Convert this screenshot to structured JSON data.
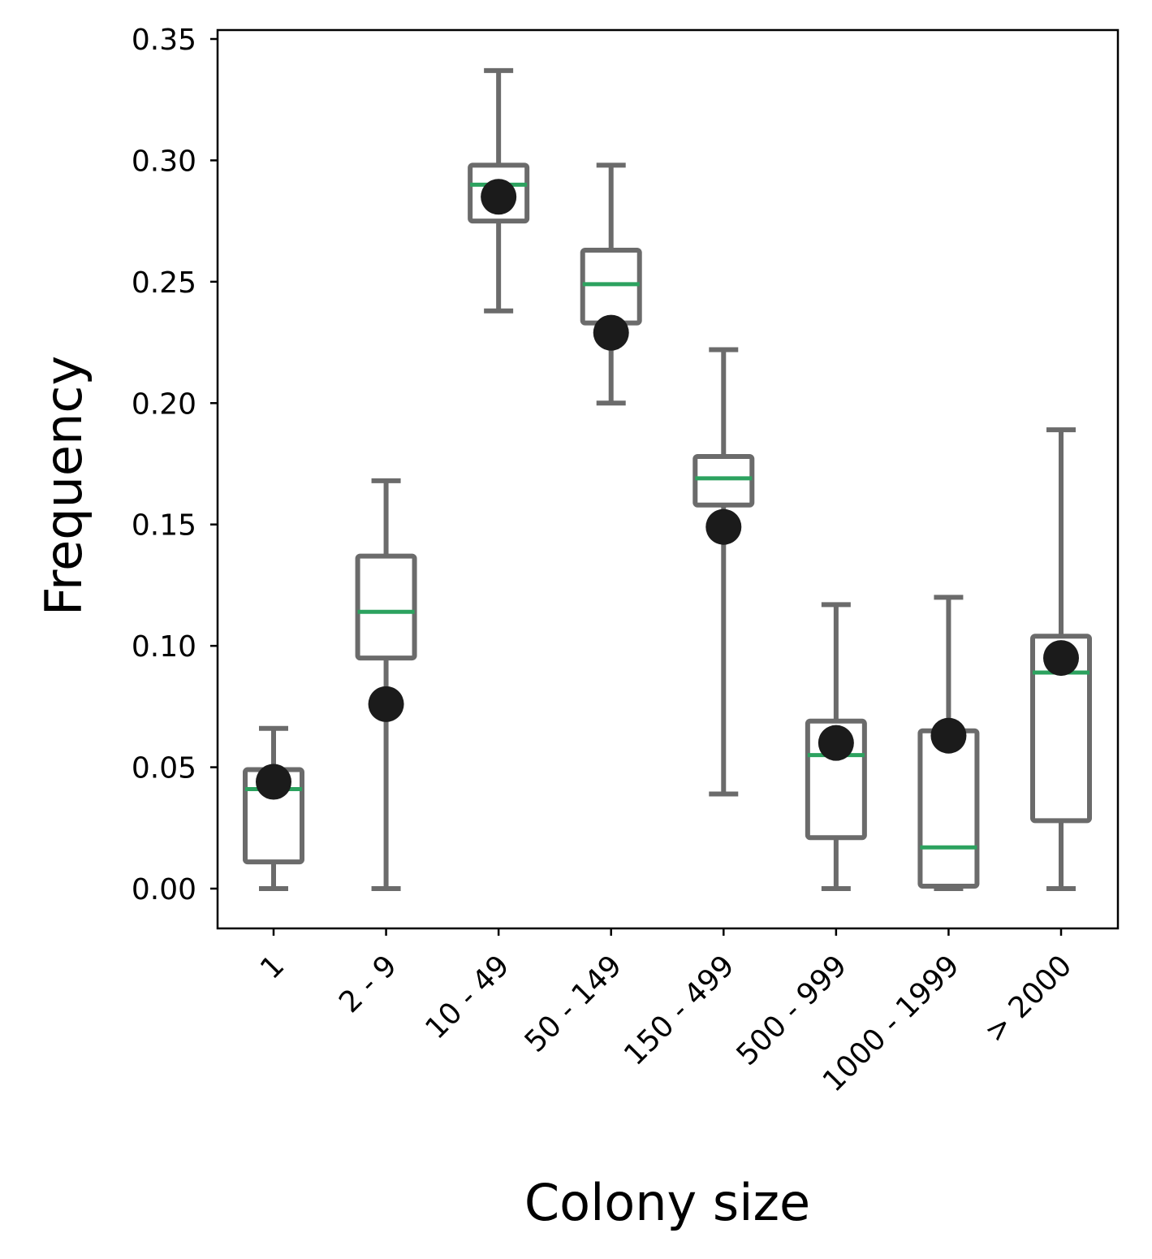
{
  "chart_data": {
    "type": "box",
    "xlabel": "Colony size",
    "ylabel": "Frequency",
    "ylim": [
      -0.017,
      0.355
    ],
    "yticks": [
      "0.00",
      "0.05",
      "0.10",
      "0.15",
      "0.20",
      "0.25",
      "0.30",
      "0.35"
    ],
    "ytick_values": [
      0,
      0.05,
      0.1,
      0.15,
      0.2,
      0.25,
      0.3,
      0.35
    ],
    "categories": [
      "1",
      "2 - 9",
      "10 - 49",
      "50 - 149",
      "150 - 499",
      "500 - 999",
      "1000 - 1999",
      "> 2000"
    ],
    "boxes": [
      {
        "whisker_low": 0.0,
        "q1": 0.011,
        "median": 0.041,
        "q3": 0.049,
        "whisker_high": 0.066
      },
      {
        "whisker_low": 0.0,
        "q1": 0.095,
        "median": 0.114,
        "q3": 0.137,
        "whisker_high": 0.168
      },
      {
        "whisker_low": 0.238,
        "q1": 0.275,
        "median": 0.29,
        "q3": 0.298,
        "whisker_high": 0.337
      },
      {
        "whisker_low": 0.2,
        "q1": 0.233,
        "median": 0.249,
        "q3": 0.263,
        "whisker_high": 0.298
      },
      {
        "whisker_low": 0.039,
        "q1": 0.158,
        "median": 0.169,
        "q3": 0.178,
        "whisker_high": 0.222
      },
      {
        "whisker_low": 0.0,
        "q1": 0.021,
        "median": 0.055,
        "q3": 0.069,
        "whisker_high": 0.117
      },
      {
        "whisker_low": 0.0,
        "q1": 0.001,
        "median": 0.017,
        "q3": 0.065,
        "whisker_high": 0.12
      },
      {
        "whisker_low": 0.0,
        "q1": 0.028,
        "median": 0.089,
        "q3": 0.104,
        "whisker_high": 0.189
      }
    ],
    "points": [
      0.044,
      0.076,
      0.285,
      0.229,
      0.149,
      0.06,
      0.063,
      0.095
    ],
    "colors": {
      "box": "#6b6b6b",
      "median": "#2ca25f",
      "point": "#1b1b1b",
      "axis": "#000000"
    },
    "grid": false,
    "legend": "none"
  }
}
